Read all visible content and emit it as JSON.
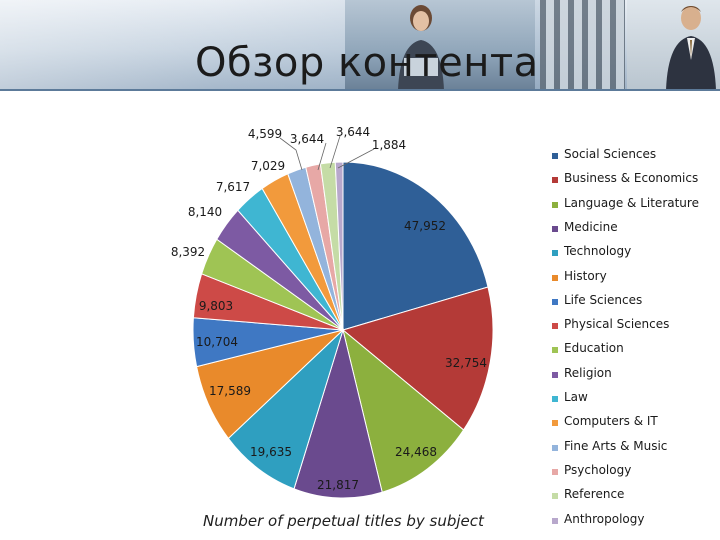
{
  "slide": {
    "title": "Обзор контента"
  },
  "chart_data": {
    "type": "pie",
    "title": "",
    "caption": "Number of perpetual titles by subject",
    "legend_position": "right",
    "categories": [
      "Social Sciences",
      "Business & Economics",
      "Language & Literature",
      "Medicine",
      "Technology",
      "History",
      "Life Sciences",
      "Physical Sciences",
      "Education",
      "Religion",
      "Law",
      "Computers & IT",
      "Fine Arts & Music",
      "Psychology",
      "Reference",
      "Anthropology"
    ],
    "values": [
      47952,
      32754,
      24468,
      21817,
      19635,
      17589,
      10704,
      9803,
      8392,
      8140,
      7617,
      7029,
      4599,
      3644,
      3644,
      1884
    ],
    "data_labels": [
      "47,952",
      "32,754",
      "24,468",
      "21,817",
      "19,635",
      "17,589",
      "10,704",
      "9,803",
      "8,392",
      "8,140",
      "7,617",
      "7,029",
      "4,599",
      "3,644",
      "3,644",
      "1,884"
    ],
    "colors": [
      "#2f5f97",
      "#b43a37",
      "#8cb03e",
      "#6a4a8e",
      "#2f9fc0",
      "#e98a2b",
      "#3f78c3",
      "#cd4a47",
      "#9fc454",
      "#7d5aa3",
      "#3fb6d2",
      "#f29a3c",
      "#93b4dc",
      "#e7a8a6",
      "#c5dca6",
      "#b8a8cc"
    ]
  }
}
